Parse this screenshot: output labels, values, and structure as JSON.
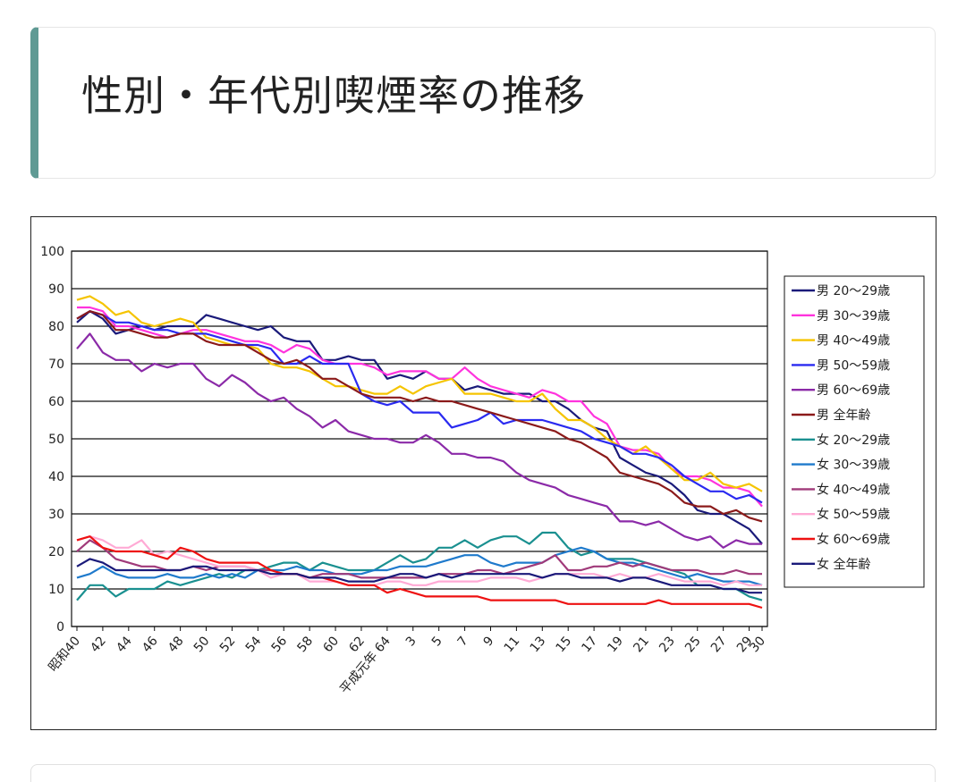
{
  "page": {
    "title": "性別・年代別喫煙率の推移"
  },
  "chart_data": {
    "type": "line",
    "title": "",
    "xlabel": "",
    "ylabel": "",
    "ylim": [
      0,
      100
    ],
    "yticks": [
      0,
      10,
      20,
      30,
      40,
      50,
      60,
      70,
      80,
      90,
      100
    ],
    "grid": "horizontal",
    "legend": "right",
    "x_positions": 54,
    "x_tick_labels": [
      {
        "i": 0,
        "label": "昭和40"
      },
      {
        "i": 2,
        "label": "42"
      },
      {
        "i": 4,
        "label": "44"
      },
      {
        "i": 6,
        "label": "46"
      },
      {
        "i": 8,
        "label": "48"
      },
      {
        "i": 10,
        "label": "50"
      },
      {
        "i": 12,
        "label": "52"
      },
      {
        "i": 14,
        "label": "54"
      },
      {
        "i": 16,
        "label": "56"
      },
      {
        "i": 18,
        "label": "58"
      },
      {
        "i": 20,
        "label": "60"
      },
      {
        "i": 22,
        "label": "62"
      },
      {
        "i": 24,
        "label": "平成元年 64"
      },
      {
        "i": 26,
        "label": "3"
      },
      {
        "i": 28,
        "label": "5"
      },
      {
        "i": 30,
        "label": "7"
      },
      {
        "i": 32,
        "label": "9"
      },
      {
        "i": 34,
        "label": "11"
      },
      {
        "i": 36,
        "label": "13"
      },
      {
        "i": 38,
        "label": "15"
      },
      {
        "i": 40,
        "label": "17"
      },
      {
        "i": 42,
        "label": "19"
      },
      {
        "i": 44,
        "label": "21"
      },
      {
        "i": 46,
        "label": "23"
      },
      {
        "i": 48,
        "label": "25"
      },
      {
        "i": 50,
        "label": "27"
      },
      {
        "i": 52,
        "label": "29"
      },
      {
        "i": 53,
        "label": "30"
      }
    ],
    "series": [
      {
        "name": "男 20〜29歳",
        "color": "#1a1a7a",
        "values": [
          81,
          84,
          82,
          78,
          79,
          80,
          79,
          80,
          80,
          80,
          83,
          82,
          81,
          80,
          79,
          80,
          77,
          76,
          76,
          71,
          71,
          72,
          71,
          71,
          66,
          67,
          66,
          68,
          66,
          66,
          63,
          64,
          63,
          62,
          62,
          62,
          60,
          60,
          58,
          55,
          53,
          52,
          45,
          43,
          41,
          40,
          38,
          35,
          31,
          30,
          30,
          28,
          26,
          22
        ]
      },
      {
        "name": "男 30〜39歳",
        "color": "#ff33dd",
        "values": [
          85,
          85,
          84,
          80,
          80,
          79,
          78,
          77,
          78,
          79,
          79,
          78,
          77,
          76,
          76,
          75,
          73,
          75,
          74,
          71,
          70,
          70,
          70,
          69,
          67,
          68,
          68,
          68,
          66,
          66,
          69,
          66,
          64,
          63,
          62,
          61,
          63,
          62,
          60,
          60,
          56,
          54,
          48,
          47,
          47,
          46,
          42,
          40,
          40,
          39,
          37,
          37,
          36,
          32
        ]
      },
      {
        "name": "男 40〜49歳",
        "color": "#f5c400",
        "values": [
          87,
          88,
          86,
          83,
          84,
          81,
          80,
          81,
          82,
          81,
          77,
          76,
          75,
          75,
          74,
          70,
          69,
          69,
          68,
          66,
          64,
          64,
          63,
          62,
          62,
          64,
          62,
          64,
          65,
          66,
          62,
          62,
          62,
          61,
          60,
          60,
          62,
          58,
          55,
          55,
          53,
          50,
          48,
          46,
          48,
          45,
          42,
          39,
          39,
          41,
          38,
          37,
          38,
          36
        ]
      },
      {
        "name": "男 50〜59歳",
        "color": "#2a2af0",
        "values": [
          82,
          84,
          83,
          81,
          81,
          80,
          79,
          79,
          78,
          78,
          78,
          77,
          76,
          75,
          75,
          74,
          70,
          70,
          72,
          70,
          70,
          70,
          62,
          60,
          59,
          60,
          57,
          57,
          57,
          53,
          54,
          55,
          57,
          54,
          55,
          55,
          55,
          54,
          53,
          52,
          50,
          49,
          48,
          46,
          46,
          45,
          43,
          40,
          38,
          36,
          36,
          34,
          35,
          33
        ]
      },
      {
        "name": "男 60〜69歳",
        "color": "#8b2aa8",
        "values": [
          74,
          78,
          73,
          71,
          71,
          68,
          70,
          69,
          70,
          70,
          66,
          64,
          67,
          65,
          62,
          60,
          61,
          58,
          56,
          53,
          55,
          52,
          51,
          50,
          50,
          49,
          49,
          51,
          49,
          46,
          46,
          45,
          45,
          44,
          41,
          39,
          38,
          37,
          35,
          34,
          33,
          32,
          28,
          28,
          27,
          28,
          26,
          24,
          23,
          24,
          21,
          23,
          22,
          22
        ]
      },
      {
        "name": "男 全年齢",
        "color": "#8b1a1a",
        "values": [
          82,
          84,
          83,
          79,
          79,
          78,
          77,
          77,
          78,
          78,
          76,
          75,
          75,
          75,
          73,
          71,
          70,
          71,
          69,
          66,
          66,
          64,
          62,
          61,
          61,
          61,
          60,
          61,
          60,
          60,
          59,
          58,
          57,
          56,
          55,
          54,
          53,
          52,
          50,
          49,
          47,
          45,
          41,
          40,
          39,
          38,
          36,
          33,
          32,
          32,
          30,
          31,
          29,
          28
        ]
      },
      {
        "name": "女 20〜29歳",
        "color": "#1a9090",
        "values": [
          7,
          11,
          11,
          8,
          10,
          10,
          10,
          12,
          11,
          12,
          13,
          14,
          13,
          15,
          15,
          16,
          17,
          17,
          15,
          17,
          16,
          15,
          15,
          15,
          17,
          19,
          17,
          18,
          21,
          21,
          23,
          21,
          23,
          24,
          24,
          22,
          25,
          25,
          21,
          19,
          20,
          18,
          18,
          18,
          17,
          16,
          15,
          14,
          11,
          11,
          10,
          10,
          8,
          7
        ]
      },
      {
        "name": "女 30〜39歳",
        "color": "#1f7acc",
        "values": [
          13,
          14,
          16,
          14,
          13,
          13,
          13,
          14,
          13,
          13,
          14,
          13,
          14,
          13,
          15,
          15,
          15,
          16,
          15,
          15,
          14,
          14,
          14,
          15,
          15,
          16,
          16,
          16,
          17,
          18,
          19,
          19,
          17,
          16,
          17,
          17,
          17,
          19,
          20,
          21,
          20,
          18,
          17,
          17,
          16,
          15,
          14,
          13,
          14,
          13,
          12,
          12,
          12,
          11
        ]
      },
      {
        "name": "女 40〜49歳",
        "color": "#a03a7a",
        "values": [
          20,
          23,
          21,
          18,
          17,
          16,
          16,
          15,
          15,
          16,
          15,
          16,
          16,
          16,
          15,
          15,
          14,
          14,
          13,
          14,
          14,
          14,
          13,
          13,
          13,
          13,
          13,
          13,
          14,
          14,
          14,
          15,
          15,
          14,
          15,
          16,
          17,
          19,
          15,
          15,
          16,
          16,
          17,
          16,
          17,
          16,
          15,
          15,
          15,
          14,
          14,
          15,
          14,
          14
        ]
      },
      {
        "name": "女 50〜59歳",
        "color": "#ffaad5",
        "values": [
          23,
          24,
          23,
          21,
          21,
          23,
          19,
          20,
          19,
          18,
          17,
          16,
          16,
          16,
          15,
          13,
          14,
          14,
          12,
          12,
          12,
          11,
          11,
          11,
          12,
          12,
          11,
          11,
          12,
          12,
          12,
          12,
          13,
          13,
          13,
          12,
          13,
          14,
          14,
          14,
          14,
          13,
          14,
          13,
          13,
          14,
          13,
          12,
          12,
          12,
          11,
          12,
          11,
          11
        ]
      },
      {
        "name": "女 60〜69歳",
        "color": "#ee1111",
        "values": [
          23,
          24,
          21,
          20,
          20,
          20,
          19,
          18,
          21,
          20,
          18,
          17,
          17,
          17,
          17,
          15,
          14,
          14,
          13,
          13,
          12,
          11,
          11,
          11,
          9,
          10,
          9,
          8,
          8,
          8,
          8,
          8,
          7,
          7,
          7,
          7,
          7,
          7,
          6,
          6,
          6,
          6,
          6,
          6,
          6,
          7,
          6,
          6,
          6,
          6,
          6,
          6,
          6,
          5
        ]
      },
      {
        "name": "女 全年齢",
        "color": "#1a1a7a",
        "values": [
          16,
          18,
          17,
          15,
          15,
          15,
          15,
          15,
          15,
          16,
          16,
          15,
          15,
          15,
          15,
          14,
          14,
          14,
          13,
          13,
          13,
          12,
          12,
          12,
          13,
          14,
          14,
          13,
          14,
          13,
          14,
          14,
          14,
          14,
          14,
          14,
          13,
          14,
          14,
          13,
          13,
          13,
          12,
          13,
          13,
          12,
          11,
          11,
          11,
          11,
          10,
          10,
          9,
          9
        ]
      }
    ]
  }
}
